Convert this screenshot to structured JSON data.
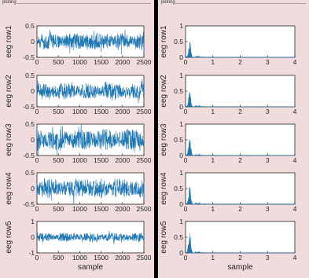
{
  "window": {
    "left_title": "ploting",
    "right_title": "ploting"
  },
  "colors": {
    "panel_bg": "#f0dcdc",
    "divider": "#000000",
    "axes_bg": "#ffffff",
    "series": "#1f77b4",
    "axis": "#262626"
  },
  "chart_data": [
    {
      "type": "line",
      "panel": "left",
      "ylabel": "eeg row1",
      "xlabel": "",
      "xlim": [
        0,
        2500
      ],
      "ylim": [
        -0.5,
        0.5
      ],
      "xticks": [
        "0",
        "500",
        "1000",
        "1500",
        "2000",
        "2500"
      ],
      "yticks": [
        "-0.5",
        "0",
        "0.5"
      ],
      "amplitude": 0.3
    },
    {
      "type": "line",
      "panel": "left",
      "ylabel": "eeg row2",
      "xlabel": "",
      "xlim": [
        0,
        2500
      ],
      "ylim": [
        -0.5,
        0.5
      ],
      "xticks": [
        "0",
        "500",
        "1000",
        "1500",
        "2000",
        "2500"
      ],
      "yticks": [
        "-0.5",
        "0",
        "0.5"
      ],
      "amplitude": 0.28
    },
    {
      "type": "line",
      "panel": "left",
      "ylabel": "eeg row3",
      "xlabel": "",
      "xlim": [
        0,
        2500
      ],
      "ylim": [
        -0.5,
        0.5
      ],
      "xticks": [
        "0",
        "500",
        "1000",
        "1500",
        "2000",
        "2500"
      ],
      "yticks": [
        "-0.5",
        "0",
        "0.5"
      ],
      "amplitude": 0.38
    },
    {
      "type": "line",
      "panel": "left",
      "ylabel": "eeg row4",
      "xlabel": "",
      "xlim": [
        0,
        2500
      ],
      "ylim": [
        -0.5,
        0.5
      ],
      "xticks": [
        "0",
        "500",
        "1000",
        "1500",
        "2000",
        "2500"
      ],
      "yticks": [
        "-0.5",
        "0",
        "0.5"
      ],
      "amplitude": 0.35
    },
    {
      "type": "line",
      "panel": "left",
      "ylabel": "eeg row5",
      "xlabel": "sample",
      "xlim": [
        0,
        2500
      ],
      "ylim": [
        -1,
        1
      ],
      "xticks": [
        "0",
        "500",
        "1000",
        "1500",
        "2000",
        "2500"
      ],
      "yticks": [
        "-1",
        "0",
        "1"
      ],
      "amplitude": 0.3
    },
    {
      "type": "area",
      "panel": "right",
      "ylabel": "eeg row1",
      "xlabel": "",
      "xlim": [
        0,
        4
      ],
      "ylim": [
        0,
        1
      ],
      "xticks": [
        "0",
        "1",
        "2",
        "3",
        "4"
      ],
      "yticks": [
        "0",
        "0.5",
        "1"
      ],
      "peak_x": 0.15,
      "peak_y": 0.55
    },
    {
      "type": "area",
      "panel": "right",
      "ylabel": "eeg row2",
      "xlabel": "",
      "xlim": [
        0,
        4
      ],
      "ylim": [
        0,
        1
      ],
      "xticks": [
        "0",
        "1",
        "2",
        "3",
        "4"
      ],
      "yticks": [
        "0",
        "0.5",
        "1"
      ],
      "peak_x": 0.15,
      "peak_y": 0.5
    },
    {
      "type": "area",
      "panel": "right",
      "ylabel": "eeg row3",
      "xlabel": "",
      "xlim": [
        0,
        4
      ],
      "ylim": [
        0,
        1
      ],
      "xticks": [
        "0",
        "1",
        "2",
        "3",
        "4"
      ],
      "yticks": [
        "0",
        "0.5",
        "1"
      ],
      "peak_x": 0.15,
      "peak_y": 0.58
    },
    {
      "type": "area",
      "panel": "right",
      "ylabel": "eeg row4",
      "xlabel": "",
      "xlim": [
        0,
        4
      ],
      "ylim": [
        0,
        1
      ],
      "xticks": [
        "0",
        "1",
        "2",
        "3",
        "4"
      ],
      "yticks": [
        "0",
        "0.5",
        "1"
      ],
      "peak_x": 0.15,
      "peak_y": 0.6
    },
    {
      "type": "area",
      "panel": "right",
      "ylabel": "eeg row5",
      "xlabel": "sample",
      "xlim": [
        0,
        4
      ],
      "ylim": [
        0,
        1
      ],
      "xticks": [
        "0",
        "1",
        "2",
        "3",
        "4"
      ],
      "yticks": [
        "0",
        "0.5",
        "1"
      ],
      "peak_x": 0.15,
      "peak_y": 0.62
    }
  ]
}
